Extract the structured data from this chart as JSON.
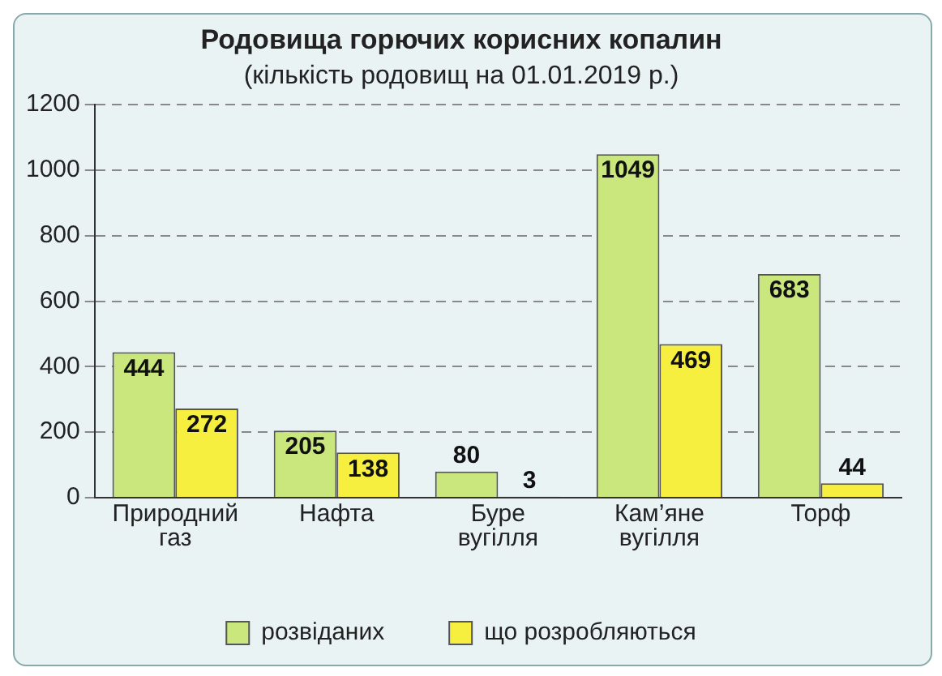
{
  "chart_data": {
    "type": "bar",
    "title": "Родовища горючих корисних копалин",
    "subtitle": "(кількість родовищ на 01.01.2019 р.)",
    "categories": [
      "Природний газ",
      "Нафта",
      "Буре вугілля",
      "Кам’яне вугілля",
      "Торф"
    ],
    "series": [
      {
        "name": "розвіданих",
        "color": "#c9e77c",
        "values": [
          444,
          205,
          80,
          1049,
          683
        ]
      },
      {
        "name": "що розробляються",
        "color": "#f7ef3f",
        "values": [
          272,
          138,
          3,
          469,
          44
        ]
      }
    ],
    "ylim": [
      0,
      1200
    ],
    "yticks": [
      0,
      200,
      400,
      600,
      800,
      1000,
      1200
    ],
    "grid": "y",
    "legend": "bottom",
    "data_labels": true
  }
}
